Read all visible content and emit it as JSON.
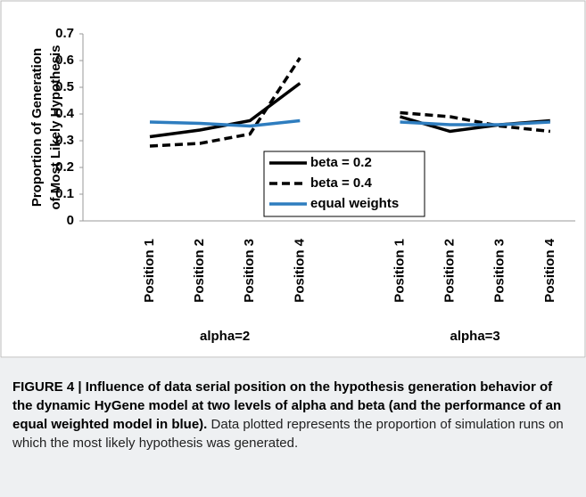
{
  "chart_data": {
    "type": "line",
    "ylabel": [
      "Proportion of Generation",
      "of Most Likely Hypothesis"
    ],
    "categories": [
      "Position 1",
      "Position 2",
      "Position 3",
      "Position 4",
      null,
      "Position 1",
      "Position 2",
      "Position 3",
      "Position 4"
    ],
    "group_labels": [
      "alpha=2",
      "alpha=3"
    ],
    "series": [
      {
        "name": "beta = 0.2",
        "color": "#000000",
        "dash": "solid",
        "values": [
          0.315,
          0.34,
          0.375,
          0.515,
          null,
          0.39,
          0.335,
          0.36,
          0.375
        ]
      },
      {
        "name": "beta = 0.4",
        "color": "#000000",
        "dash": "dashed",
        "values": [
          0.28,
          0.29,
          0.325,
          0.61,
          null,
          0.405,
          0.39,
          0.355,
          0.335
        ]
      },
      {
        "name": "equal weights",
        "color": "#2e7dbf",
        "dash": "solid",
        "values": [
          0.37,
          0.365,
          0.355,
          0.375,
          null,
          0.37,
          0.36,
          0.36,
          0.37
        ]
      }
    ],
    "ylim": [
      0,
      0.7
    ],
    "yticks": [
      0,
      0.1,
      0.2,
      0.3,
      0.4,
      0.5,
      0.6,
      0.7
    ],
    "grid": false
  },
  "caption": {
    "title": "FIGURE 4 | Influence of data serial position on the hypothesis generation behavior of the dynamic HyGene model at two levels of alpha and beta (and the performance of an equal weighted model in blue).",
    "text": "Data plotted represents the proportion of simulation runs on which the most likely hypothesis was generated."
  }
}
